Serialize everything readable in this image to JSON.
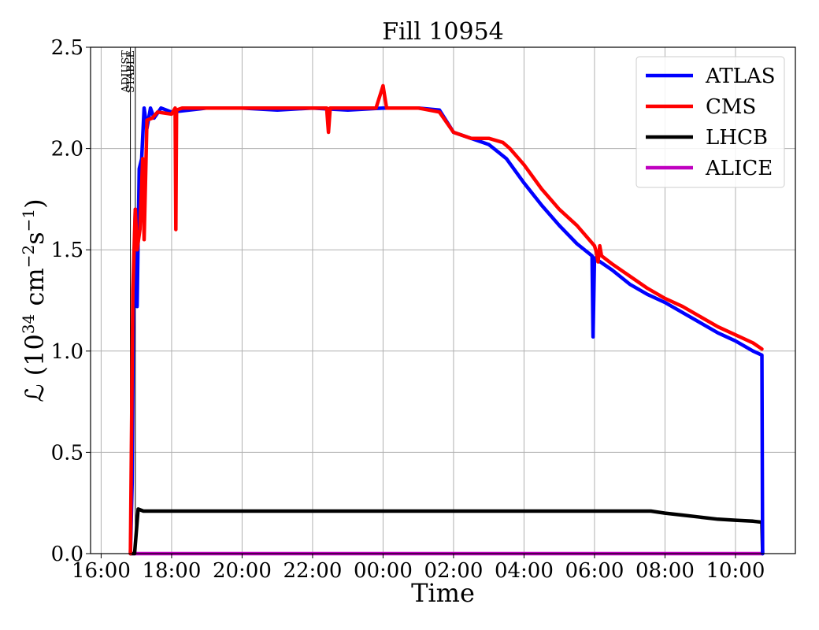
{
  "chart_data": {
    "type": "line",
    "title": "Fill 10954",
    "xlabel": "Time",
    "ylabel_prefix": "ℒ (10",
    "ylabel_exp1": "34",
    "ylabel_mid": " cm",
    "ylabel_exp2": "−2",
    "ylabel_mid2": "s",
    "ylabel_exp3": "−1",
    "ylabel_suffix": ")",
    "x_unit": "hours since 16:00",
    "xlim": [
      -0.3,
      19.7
    ],
    "ylim": [
      0,
      2.5
    ],
    "x_ticks": [
      {
        "value": 0,
        "label": "16:00"
      },
      {
        "value": 2,
        "label": "18:00"
      },
      {
        "value": 4,
        "label": "20:00"
      },
      {
        "value": 6,
        "label": "22:00"
      },
      {
        "value": 8,
        "label": "00:00"
      },
      {
        "value": 10,
        "label": "02:00"
      },
      {
        "value": 12,
        "label": "04:00"
      },
      {
        "value": 14,
        "label": "06:00"
      },
      {
        "value": 16,
        "label": "08:00"
      },
      {
        "value": 18,
        "label": "10:00"
      }
    ],
    "y_ticks": [
      {
        "value": 0,
        "label": "0.0"
      },
      {
        "value": 0.5,
        "label": "0.5"
      },
      {
        "value": 1.0,
        "label": "1.0"
      },
      {
        "value": 1.5,
        "label": "1.5"
      },
      {
        "value": 2.0,
        "label": "2.0"
      },
      {
        "value": 2.5,
        "label": "2.5"
      }
    ],
    "grid": true,
    "legend_position": "top-right",
    "markers": [
      {
        "x": 0.83,
        "label": "ADJUST"
      },
      {
        "x": 0.97,
        "label": "STABLE"
      }
    ],
    "series": [
      {
        "name": "ATLAS",
        "color": "#0000ff",
        "x": [
          0.83,
          0.88,
          0.92,
          0.97,
          1.02,
          1.08,
          1.15,
          1.22,
          1.3,
          1.4,
          1.5,
          1.7,
          2.0,
          3.0,
          4.0,
          5.0,
          6.0,
          7.0,
          8.0,
          9.0,
          9.6,
          10.0,
          10.5,
          11.0,
          11.5,
          12.0,
          12.5,
          13.0,
          13.5,
          13.93,
          13.96,
          14.0,
          14.5,
          15.0,
          15.5,
          16.0,
          16.5,
          17.0,
          17.5,
          18.0,
          18.5,
          18.75,
          18.77
        ],
        "y": [
          0.0,
          0.35,
          1.3,
          1.7,
          1.22,
          1.9,
          1.95,
          2.2,
          2.1,
          2.2,
          2.15,
          2.2,
          2.18,
          2.2,
          2.2,
          2.19,
          2.2,
          2.19,
          2.2,
          2.2,
          2.19,
          2.08,
          2.05,
          2.02,
          1.95,
          1.83,
          1.72,
          1.62,
          1.53,
          1.47,
          1.07,
          1.46,
          1.4,
          1.33,
          1.28,
          1.24,
          1.19,
          1.14,
          1.09,
          1.05,
          1.0,
          0.98,
          0.0
        ]
      },
      {
        "name": "CMS",
        "color": "#ff0000",
        "x": [
          0.83,
          0.9,
          0.97,
          1.02,
          1.1,
          1.18,
          1.22,
          1.3,
          1.45,
          1.6,
          2.0,
          2.1,
          2.12,
          2.14,
          2.3,
          3.0,
          4.0,
          5.0,
          6.0,
          6.4,
          6.45,
          6.5,
          7.0,
          7.8,
          8.0,
          8.1,
          8.3,
          9.0,
          9.6,
          10.0,
          10.5,
          11.0,
          11.4,
          11.6,
          12.0,
          12.5,
          13.0,
          13.5,
          14.0,
          14.05,
          14.1,
          14.15,
          14.2,
          14.5,
          15.0,
          15.5,
          16.0,
          16.5,
          17.0,
          17.5,
          18.0,
          18.5,
          18.75
        ],
        "y": [
          0.0,
          1.3,
          1.7,
          1.5,
          1.6,
          1.95,
          1.55,
          2.14,
          2.15,
          2.18,
          2.17,
          2.2,
          1.6,
          2.19,
          2.2,
          2.2,
          2.2,
          2.2,
          2.2,
          2.2,
          2.08,
          2.2,
          2.2,
          2.2,
          2.31,
          2.2,
          2.2,
          2.2,
          2.18,
          2.08,
          2.05,
          2.05,
          2.03,
          2.0,
          1.92,
          1.8,
          1.7,
          1.62,
          1.52,
          1.49,
          1.44,
          1.52,
          1.47,
          1.43,
          1.37,
          1.31,
          1.26,
          1.22,
          1.17,
          1.12,
          1.08,
          1.04,
          1.01
        ]
      },
      {
        "name": "LHCB",
        "color": "#000000",
        "x": [
          0.83,
          0.95,
          1.05,
          1.2,
          1.5,
          2.0,
          3.0,
          4.0,
          5.0,
          6.0,
          7.0,
          8.0,
          9.0,
          10.0,
          11.0,
          12.0,
          13.0,
          14.0,
          15.0,
          15.6,
          16.0,
          16.5,
          17.0,
          17.5,
          18.0,
          18.5,
          18.75,
          18.77
        ],
        "y": [
          0.0,
          0.0,
          0.22,
          0.21,
          0.21,
          0.21,
          0.21,
          0.21,
          0.21,
          0.21,
          0.21,
          0.21,
          0.21,
          0.21,
          0.21,
          0.21,
          0.21,
          0.21,
          0.21,
          0.21,
          0.2,
          0.19,
          0.18,
          0.17,
          0.165,
          0.16,
          0.155,
          0.0
        ]
      },
      {
        "name": "ALICE",
        "color": "#c000c0",
        "x": [
          0.83,
          18.77
        ],
        "y": [
          0.0,
          0.0
        ]
      }
    ]
  }
}
